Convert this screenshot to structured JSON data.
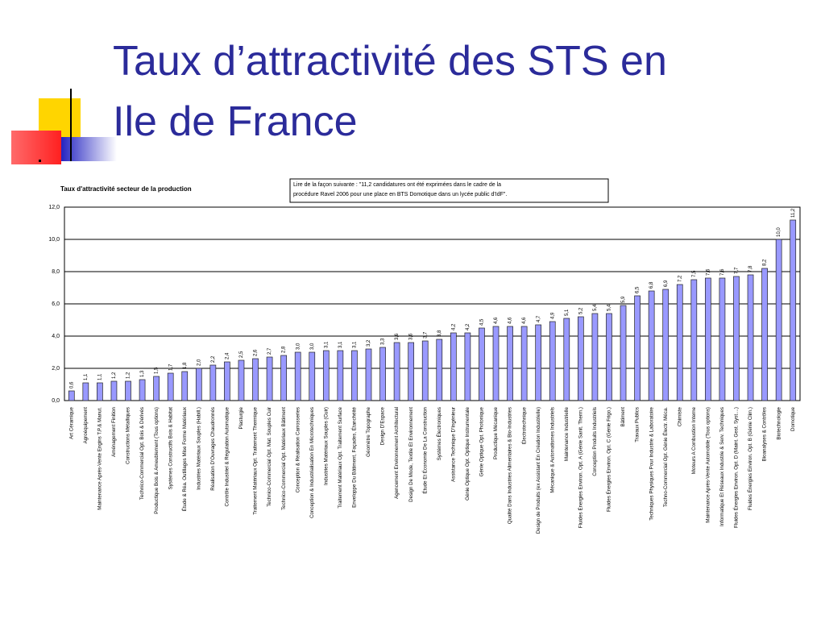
{
  "slide_title": [
    "Taux d’attractivité des STS en",
    "Ile de France"
  ],
  "chart_data": {
    "type": "bar",
    "title": "Taux d'attractivité secteur de la production",
    "note": [
      "Lire de la façon suivante : \"11,2 candidatures ont été exprimées dans le cadre de la",
      "procédure Ravel 2006 pour une place en BTS Domotique dans un lycée public d'IdF\"."
    ],
    "categories": [
      "Art Céramique",
      "Agroéquipement",
      "Maintenance Après-Vente Engins T.P.& Manut.",
      "Aménagement Finition",
      "Constructions Métalliques",
      "Technico-Commercial Opt. Bois & Dérivés",
      "Productique Bois & Ameublement (Tous options)",
      "Systèmes Constructifs Bois & Habitat",
      "Étude & Réa. Outillages Mise Forme Matériaux",
      "Industries Matériaux Souples (Habill.)",
      "Réalisation D'Ouvrages Chaudronnés",
      "Contrôle Industriel & Régulation Automatique",
      "Plasturgie",
      "Traitement Matériaux Opt. Traitement Thermique",
      "Technico-Commercial Opt. Mat. Souples Cuir",
      "Technico-Commercial Opt. Matériaux Bâtiment",
      "Conception & Réalisation Carrosseries",
      "Conception & Industrialisation En Microtechniques",
      "Industries Matériaux Souples (Cuir)",
      "Traitement Matériaux Opt. Traitement Surface",
      "Enveloppe Du Bâtiment, Façades, Étanchéité",
      "Géomètre Topographe",
      "Design D'Espace",
      "Agencement Environnement Architectural",
      "Design De Mode, Textile Et Environnement",
      "Étude Et Économie De La Construction",
      "Systèmes Électroniques",
      "Assistance Technique D'Ingénieur",
      "Génie Optique Opt. Optique Instrumentale",
      "Génie Optique Opt. Photonique",
      "Productique Mécanique",
      "Qualité Dans Industries Alimentaires & Bio-Industries",
      "Électrotechnique",
      "Design de Produits (ex Assistant En Création Industrielle)",
      "Mécanique & Automatismes Industriels",
      "Maintenance Industrielle",
      "Fluides Énergies Environ. Opt. A (Génie Sanit. Therm.)",
      "Conception Produits Industriels",
      "Fluides Énergies Environ. Opt. C (Génie Frigo.)",
      "Bâtiment",
      "Travaux Publics",
      "Techniques Physiques Pour Industrie & Laboratoire",
      "Techno-Commercial Opt. Génie Électr. Méca.",
      "Chimiste",
      "Moteurs A Combustion Interne",
      "Maintenance Après-Vente Automobile (Tous options)",
      "Informatique Et Réseaux Industrie & Serv. Techniques",
      "Fluides Énergies Environ. Opt. D (Maint. Gest. Syst....)",
      "Fluides Énergies Environ. Opt. B (Génie Clim.)",
      "Bioanalyses & Contrôles",
      "Biotechnologie",
      "Domotique"
    ],
    "values": [
      0.6,
      1.1,
      1.1,
      1.2,
      1.2,
      1.3,
      1.5,
      1.7,
      1.8,
      2.0,
      2.2,
      2.4,
      2.5,
      2.6,
      2.7,
      2.8,
      3.0,
      3.0,
      3.1,
      3.1,
      3.1,
      3.2,
      3.3,
      3.6,
      3.6,
      3.7,
      3.8,
      4.2,
      4.2,
      4.5,
      4.6,
      4.6,
      4.6,
      4.7,
      4.9,
      5.1,
      5.2,
      5.4,
      5.4,
      5.9,
      6.5,
      6.8,
      6.9,
      7.2,
      7.5,
      7.6,
      7.6,
      7.7,
      7.8,
      8.2,
      10.0,
      11.2
    ],
    "value_labels": [
      "0,6",
      "1,1",
      "1,1",
      "1,2",
      "1,2",
      "1,3",
      "1,5",
      "1,7",
      "1,8",
      "2,0",
      "2,2",
      "2,4",
      "2,5",
      "2,6",
      "2,7",
      "2,8",
      "3,0",
      "3,0",
      "3,1",
      "3,1",
      "3,1",
      "3,2",
      "3,3",
      "3,6",
      "3,6",
      "3,7",
      "3,8",
      "4,2",
      "4,2",
      "4,5",
      "4,6",
      "4,6",
      "4,6",
      "4,7",
      "4,9",
      "5,1",
      "5,2",
      "5,4",
      "5,4",
      "5,9",
      "6,5",
      "6,8",
      "6,9",
      "7,2",
      "7,5",
      "7,6",
      "7,6",
      "7,7",
      "7,8",
      "8,2",
      "10,0",
      "11,2"
    ],
    "color": "#9999ff",
    "ylim": [
      0,
      12
    ],
    "yticks": [
      {
        "value": 0,
        "label": "0,0"
      },
      {
        "value": 2,
        "label": "2,0"
      },
      {
        "value": 4,
        "label": "4,0"
      },
      {
        "value": 6,
        "label": "6,0"
      },
      {
        "value": 8,
        "label": "8,0"
      },
      {
        "value": 10,
        "label": "10,0"
      },
      {
        "value": 12,
        "label": "12,0"
      }
    ],
    "grid": true
  }
}
